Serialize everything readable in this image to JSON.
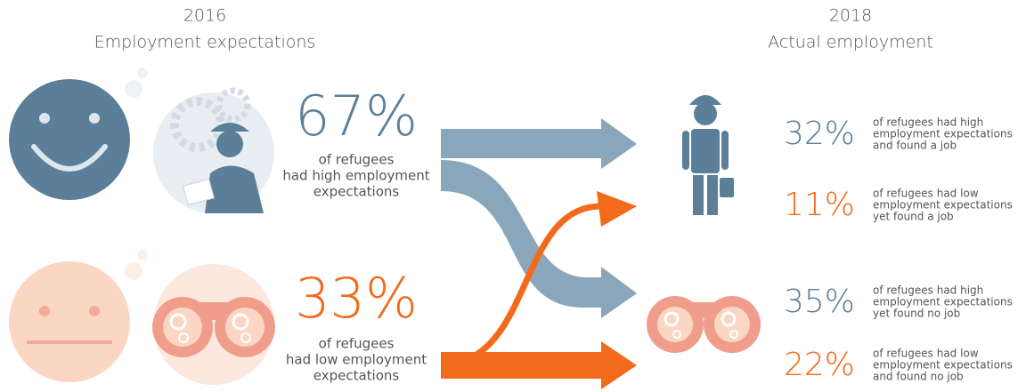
{
  "left": {
    "year": "2016",
    "heading": "Employment expectations",
    "high": {
      "percent": "67%",
      "lines": [
        "of refugees",
        "had high employment",
        "expectations"
      ]
    },
    "low": {
      "percent": "33%",
      "lines": [
        "of refugees",
        "had low employment",
        "expectations"
      ]
    }
  },
  "right": {
    "year": "2018",
    "heading": "Actual employment",
    "items": [
      {
        "percent": "32%",
        "lines": [
          "of refugees had high",
          "employment expectations",
          "and found a job"
        ]
      },
      {
        "percent": "11%",
        "lines": [
          "of refugees had low",
          "employment expectations",
          "yet found a job"
        ]
      },
      {
        "percent": "35%",
        "lines": [
          "of refugees had high",
          "employment expectations",
          "yet found no job"
        ]
      },
      {
        "percent": "22%",
        "lines": [
          "of refugees had low",
          "employment expectations",
          "and found no job"
        ]
      }
    ]
  }
}
